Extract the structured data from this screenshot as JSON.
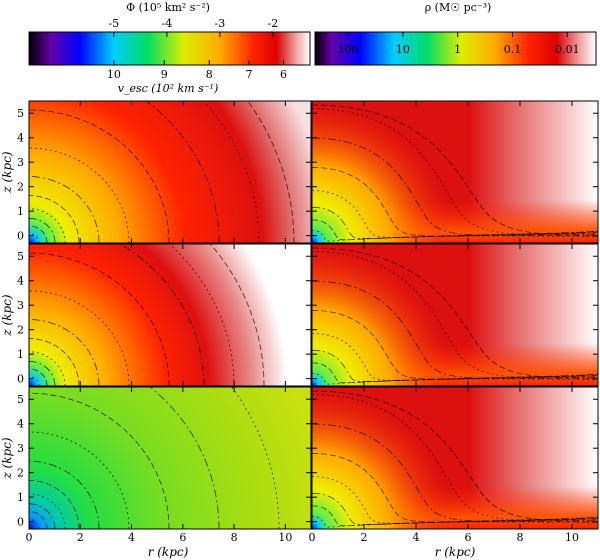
{
  "chart_data": {
    "type": "heatmap",
    "colorbars": [
      {
        "id": "potential",
        "label_html": "Φ (10⁵ km² s⁻²)",
        "top_ticks": [
          "-5",
          "-4",
          "-3",
          "-2"
        ],
        "top_tick_values": [
          -5,
          -4,
          -3,
          -2
        ],
        "bottom_label": "v_esc (10² km s⁻¹)",
        "bottom_ticks": [
          "10",
          "9",
          "8",
          "7",
          "6"
        ],
        "bottom_tick_values": [
          10,
          9,
          8,
          7,
          6
        ],
        "range": [
          -6.6,
          -1.3
        ],
        "scale": "linear"
      },
      {
        "id": "density",
        "label_html": "ρ (M☉ pc⁻³)",
        "top_ticks": [
          "100",
          "10",
          "1",
          "0.1",
          "0.01"
        ],
        "top_tick_values": [
          100,
          10,
          1,
          0.1,
          0.01
        ],
        "range": [
          400,
          0.003
        ],
        "scale": "log"
      }
    ],
    "panels": {
      "rows": 3,
      "columns": 2,
      "left_column": "Φ",
      "right_column": "ρ"
    },
    "xlabel": "r (kpc)",
    "ylabel": "z (kpc)",
    "xlim": [
      0,
      11
    ],
    "ylim": [
      -0.3,
      5.5
    ],
    "xticks": [
      "0",
      "2",
      "4",
      "6",
      "8",
      "10"
    ],
    "xtick_values": [
      0,
      2,
      4,
      6,
      8,
      10
    ],
    "yticks": [
      "0",
      "1",
      "2",
      "3",
      "4",
      "5"
    ],
    "ytick_values": [
      0,
      1,
      2,
      3,
      4,
      5
    ]
  }
}
